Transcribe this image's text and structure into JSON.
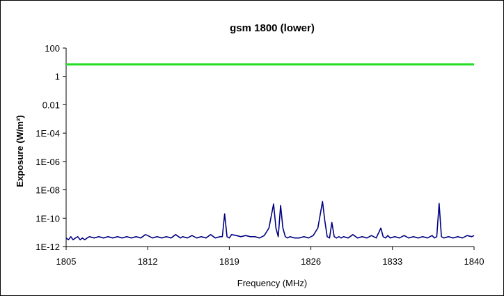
{
  "chart_data": {
    "type": "line",
    "title": "gsm 1800 (lower)",
    "xlabel": "Frequency (MHz)",
    "ylabel": "Exposure (W/m²)",
    "xlim": [
      1805,
      1840
    ],
    "ylim": [
      1e-12,
      100
    ],
    "yscale": "log",
    "x_ticks": [
      "1805",
      "1812",
      "1819",
      "1826",
      "1833",
      "1840"
    ],
    "y_ticks": [
      "100",
      "1",
      "0.01",
      "1E-04",
      "1E-06",
      "1E-08",
      "1E-10",
      "1E-12"
    ],
    "grid": false,
    "legend": "none",
    "series": [
      {
        "color": "#22dd22",
        "x": [
          1805,
          1840
        ],
        "values": [
          7,
          7
        ]
      },
      {
        "color": "#000080",
        "x": [
          1805.0,
          1805.2,
          1805.4,
          1805.6,
          1805.8,
          1806.0,
          1806.2,
          1806.4,
          1806.6,
          1806.8,
          1807.0,
          1807.4,
          1807.8,
          1808.2,
          1808.6,
          1809.0,
          1809.4,
          1809.8,
          1810.2,
          1810.6,
          1811.0,
          1811.4,
          1811.8,
          1812.0,
          1812.4,
          1812.8,
          1813.2,
          1813.6,
          1814.0,
          1814.4,
          1814.8,
          1815.0,
          1815.4,
          1815.8,
          1816.2,
          1816.6,
          1817.0,
          1817.4,
          1817.8,
          1818.2,
          1818.4,
          1818.6,
          1818.8,
          1819.0,
          1819.2,
          1819.6,
          1820.0,
          1820.4,
          1820.8,
          1821.2,
          1821.6,
          1822.0,
          1822.4,
          1822.8,
          1823.0,
          1823.2,
          1823.4,
          1823.6,
          1823.8,
          1824.0,
          1824.2,
          1824.6,
          1825.0,
          1825.4,
          1825.8,
          1826.2,
          1826.6,
          1827.0,
          1827.2,
          1827.4,
          1827.6,
          1827.8,
          1828.0,
          1828.2,
          1828.4,
          1828.6,
          1828.8,
          1829.2,
          1829.6,
          1830.0,
          1830.4,
          1830.8,
          1831.2,
          1831.6,
          1832.0,
          1832.2,
          1832.4,
          1832.6,
          1832.8,
          1833.2,
          1833.6,
          1834.0,
          1834.4,
          1834.8,
          1835.2,
          1835.6,
          1836.0,
          1836.4,
          1836.6,
          1836.8,
          1837.0,
          1837.2,
          1837.4,
          1837.8,
          1838.2,
          1838.6,
          1839.0,
          1839.4,
          1839.8,
          1840.0
        ],
        "values": [
          4e-12,
          3e-12,
          5e-12,
          3e-12,
          4e-12,
          5e-12,
          3e-12,
          4e-12,
          3e-12,
          4e-12,
          5e-12,
          4e-12,
          5e-12,
          4e-12,
          5e-12,
          4e-12,
          5e-12,
          4e-12,
          5e-12,
          4e-12,
          5e-12,
          4e-12,
          7e-12,
          6e-12,
          4e-12,
          5e-12,
          4e-12,
          5e-12,
          4e-12,
          7e-12,
          4e-12,
          5e-12,
          4e-12,
          6e-12,
          4e-12,
          5e-12,
          4e-12,
          7e-12,
          4e-12,
          5e-12,
          5e-12,
          2e-10,
          5e-12,
          4e-12,
          7e-12,
          6e-12,
          5e-12,
          6e-12,
          5e-12,
          5e-12,
          4e-12,
          6e-12,
          2e-11,
          1e-09,
          2e-11,
          5e-12,
          8e-10,
          2e-11,
          5e-12,
          4e-12,
          5e-12,
          4e-12,
          4e-12,
          5e-12,
          4e-12,
          6e-12,
          2e-11,
          1.5e-09,
          6e-11,
          5e-12,
          4e-12,
          5e-11,
          5e-12,
          4e-12,
          5e-12,
          4e-12,
          5e-12,
          4e-12,
          7e-12,
          4e-12,
          5e-12,
          4e-12,
          6e-12,
          4e-12,
          2e-11,
          5e-12,
          4e-12,
          6e-12,
          4e-12,
          5e-12,
          4e-12,
          6e-12,
          4e-12,
          5e-12,
          4e-12,
          5e-12,
          4e-12,
          6e-12,
          4e-12,
          5e-12,
          1.1e-09,
          5e-12,
          4e-12,
          5e-12,
          4e-12,
          5e-12,
          4e-12,
          6e-12,
          5e-12,
          6e-12
        ]
      }
    ]
  }
}
